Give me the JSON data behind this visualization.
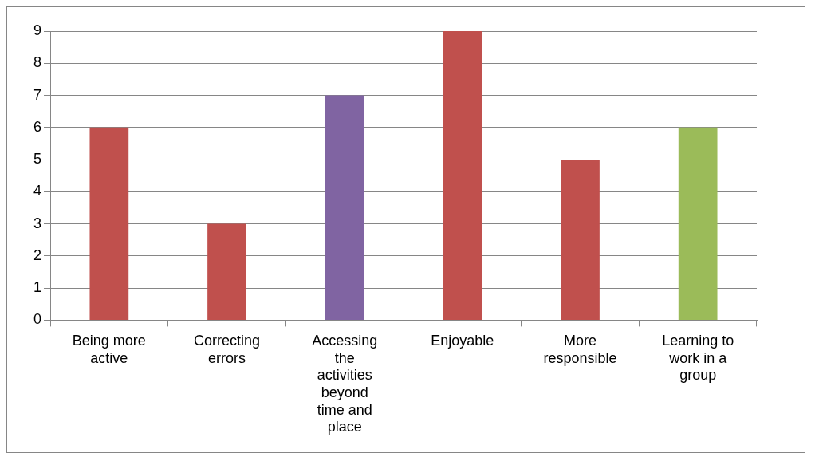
{
  "chart_data": {
    "type": "bar",
    "categories": [
      "Being more active",
      "Correcting errors",
      "Accessing the activities beyond time and place",
      "Enjoyable",
      "More responsible",
      "Learning to work in a group"
    ],
    "values": [
      6,
      3,
      7,
      9,
      5,
      6
    ],
    "colors": [
      "#c0504d",
      "#c0504d",
      "#8064a2",
      "#c0504d",
      "#c0504d",
      "#9bbb59"
    ],
    "ylim": [
      0,
      9
    ],
    "yticks": [
      0,
      1,
      2,
      3,
      4,
      5,
      6,
      7,
      8,
      9
    ],
    "grid": "y",
    "legend": false
  }
}
